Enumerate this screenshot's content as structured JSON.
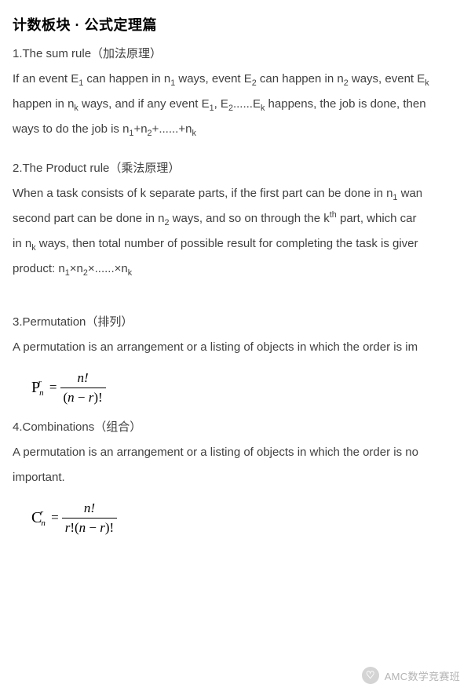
{
  "title": "计数板块 · 公式定理篇",
  "sections": {
    "sum_rule": {
      "heading": "1.The sum rule（加法原理）",
      "line1_pre": "If an event E",
      "line1_mid1": " can happen in n",
      "line1_mid2": " ways, event E",
      "line1_mid3": " can happen in n",
      "line1_mid4": " ways, event E",
      "line2_pre": "happen in n",
      "line2_mid1": " ways, and if any event E",
      "line2_mid2": ", E",
      "line2_mid3": "......E",
      "line2_end": " happens, the job is done, then ",
      "line3_pre": "ways to do the job is n",
      "line3_mid1": "+n",
      "line3_mid2": "+......+n"
    },
    "product_rule": {
      "heading": "2.The Product rule（乘法原理）",
      "line1_pre": "When a task consists of k separate parts, if the first part can be done in n",
      "line1_end": " wan",
      "line2_pre": "second part can be done in n",
      "line2_mid": " ways, and so on through the k",
      "line2_end": " part, which car",
      "line3_pre": "in n",
      "line3_end": " ways, then total number of possible result for completing the task is giver",
      "line4_pre": "product: n",
      "line4_mid1": "×n",
      "line4_mid2": "×......×n"
    },
    "permutation": {
      "heading": "3.Permutation（排列）",
      "line1": "A permutation is an arrangement or a listing of objects in which the order is im",
      "formula": {
        "symbol": "P",
        "sub": "n",
        "sup": "r",
        "numerator": "n!",
        "denominator_pre": "(",
        "denominator_n": "n",
        "denominator_minus": " − ",
        "denominator_r": "r",
        "denominator_post": ")!"
      }
    },
    "combination": {
      "heading": "4.Combinations（组合）",
      "line1": "A permutation is an arrangement or a listing of objects in which the order is no",
      "line2": "important.",
      "formula": {
        "symbol": "C",
        "sub": "n",
        "sup": "r",
        "numerator": "n!",
        "den_r": "r",
        "den_excl": "!(",
        "den_n": "n",
        "den_minus": " − ",
        "den_r2": "r",
        "den_post": ")!"
      }
    }
  },
  "footer": {
    "icon_glyph": "♡",
    "text": "AMC数学竞赛班"
  },
  "colors": {
    "text": "#404040",
    "title": "#000000",
    "background": "#ffffff",
    "footer_text": "#a9a9a9",
    "footer_icon_bg": "#cfcfcf"
  },
  "typography": {
    "title_fontsize": 18,
    "body_fontsize": 15,
    "formula_fontsize": 17,
    "footer_fontsize": 13
  }
}
